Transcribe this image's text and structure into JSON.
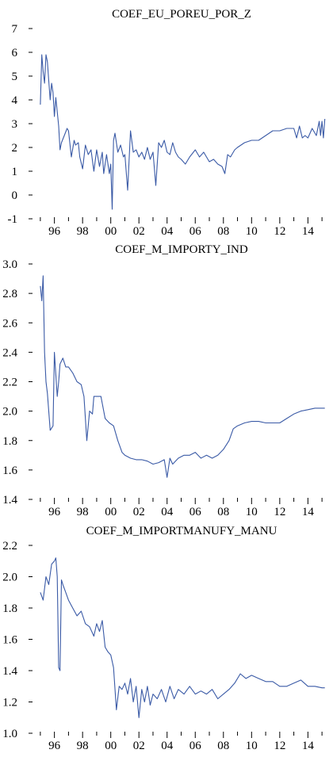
{
  "chart_data": [
    {
      "type": "line",
      "title": "COEF_EU_POREU_POR_Z",
      "ylim": [
        -1,
        7
      ],
      "y_ticks": [
        "7",
        "6",
        "5",
        "4",
        "3",
        "2",
        "1",
        "0",
        "-1"
      ],
      "x_range": [
        1994.5,
        2015.5
      ],
      "x_tick_labels": [
        "96",
        "98",
        "00",
        "02",
        "04",
        "06",
        "08",
        "10",
        "12",
        "14"
      ],
      "grid": false,
      "legend": "none",
      "line_color": "#3a5aa6",
      "x": [
        1995.0,
        1995.1,
        1995.2,
        1995.3,
        1995.4,
        1995.5,
        1995.6,
        1995.7,
        1995.8,
        1995.9,
        1996.0,
        1996.1,
        1996.2,
        1996.3,
        1996.4,
        1996.5,
        1996.7,
        1996.9,
        1997.0,
        1997.2,
        1997.4,
        1997.5,
        1997.7,
        1997.8,
        1998.0,
        1998.2,
        1998.4,
        1998.6,
        1998.8,
        1999.0,
        1999.2,
        1999.4,
        1999.5,
        1999.7,
        1999.9,
        2000.0,
        2000.1,
        2000.2,
        2000.3,
        2000.5,
        2000.7,
        2000.9,
        2001.0,
        2001.2,
        2001.4,
        2001.6,
        2001.8,
        2002.0,
        2002.2,
        2002.4,
        2002.6,
        2002.8,
        2003.0,
        2003.2,
        2003.4,
        2003.6,
        2003.8,
        2004.0,
        2004.2,
        2004.4,
        2004.6,
        2004.8,
        2005.0,
        2005.3,
        2005.6,
        2006.0,
        2006.3,
        2006.6,
        2007.0,
        2007.3,
        2007.6,
        2007.9,
        2008.1,
        2008.3,
        2008.5,
        2008.8,
        2009.0,
        2009.5,
        2010.0,
        2010.5,
        2011.0,
        2011.5,
        2012.0,
        2012.5,
        2013.0,
        2013.2,
        2013.4,
        2013.6,
        2013.8,
        2014.0,
        2014.3,
        2014.6,
        2014.8,
        2014.9,
        2015.0,
        2015.1,
        2015.2
      ],
      "values": [
        3.8,
        5.9,
        5.2,
        4.7,
        5.9,
        5.6,
        4.8,
        4.0,
        4.7,
        4.3,
        3.3,
        4.1,
        3.5,
        2.9,
        1.9,
        2.2,
        2.5,
        2.8,
        2.7,
        1.6,
        2.3,
        2.1,
        2.2,
        1.6,
        1.1,
        2.1,
        1.7,
        1.9,
        1.0,
        1.9,
        1.2,
        1.8,
        0.9,
        1.7,
        0.9,
        1.3,
        -0.6,
        2.3,
        2.6,
        1.8,
        2.1,
        1.6,
        1.7,
        0.2,
        2.7,
        1.8,
        1.9,
        1.6,
        1.8,
        1.5,
        2.0,
        1.5,
        1.8,
        0.4,
        2.2,
        2.0,
        2.3,
        1.8,
        1.7,
        2.2,
        1.8,
        1.6,
        1.5,
        1.3,
        1.6,
        1.9,
        1.6,
        1.8,
        1.4,
        1.5,
        1.3,
        1.2,
        0.9,
        1.7,
        1.6,
        1.9,
        2.0,
        2.2,
        2.3,
        2.3,
        2.5,
        2.7,
        2.7,
        2.8,
        2.8,
        2.4,
        2.9,
        2.4,
        2.5,
        2.4,
        2.8,
        2.5,
        3.1,
        2.5,
        3.1,
        2.4,
        3.2
      ]
    },
    {
      "type": "line",
      "title": "COEF_M_IMPORTY_IND",
      "ylim": [
        1.4,
        3.0
      ],
      "y_ticks": [
        "3.0",
        "2.8",
        "2.6",
        "2.4",
        "2.2",
        "2.0",
        "1.8",
        "1.6",
        "1.4"
      ],
      "x_range": [
        1994.5,
        2015.5
      ],
      "x_tick_labels": [
        "96",
        "98",
        "00",
        "02",
        "04",
        "06",
        "08",
        "10",
        "12",
        "14"
      ],
      "grid": false,
      "legend": "none",
      "line_color": "#3a5aa6",
      "x": [
        1995.0,
        1995.1,
        1995.2,
        1995.3,
        1995.4,
        1995.5,
        1995.7,
        1995.9,
        1996.0,
        1996.2,
        1996.3,
        1996.4,
        1996.6,
        1996.8,
        1997.0,
        1997.3,
        1997.6,
        1997.9,
        1998.1,
        1998.3,
        1998.5,
        1998.7,
        1998.8,
        1999.0,
        1999.3,
        1999.6,
        1999.9,
        2000.2,
        2000.5,
        2000.8,
        2001.0,
        2001.4,
        2001.8,
        2002.2,
        2002.6,
        2003.0,
        2003.4,
        2003.8,
        2004.0,
        2004.2,
        2004.4,
        2004.8,
        2005.2,
        2005.6,
        2006.0,
        2006.4,
        2006.8,
        2007.2,
        2007.6,
        2008.0,
        2008.4,
        2008.7,
        2009.0,
        2009.5,
        2010.0,
        2010.5,
        2011.0,
        2011.5,
        2012.0,
        2012.5,
        2013.0,
        2013.5,
        2014.0,
        2014.5,
        2015.0,
        2015.2
      ],
      "values": [
        2.85,
        2.75,
        2.92,
        2.4,
        2.2,
        2.12,
        1.87,
        1.9,
        2.4,
        2.1,
        2.2,
        2.32,
        2.36,
        2.3,
        2.3,
        2.26,
        2.2,
        2.18,
        2.1,
        1.8,
        2.0,
        1.98,
        2.1,
        2.1,
        2.1,
        1.95,
        1.92,
        1.9,
        1.8,
        1.72,
        1.7,
        1.68,
        1.67,
        1.67,
        1.66,
        1.64,
        1.65,
        1.67,
        1.55,
        1.68,
        1.64,
        1.68,
        1.7,
        1.7,
        1.72,
        1.68,
        1.7,
        1.68,
        1.7,
        1.74,
        1.8,
        1.88,
        1.9,
        1.92,
        1.93,
        1.93,
        1.92,
        1.92,
        1.92,
        1.95,
        1.98,
        2.0,
        2.01,
        2.02,
        2.02,
        2.02
      ]
    },
    {
      "type": "line",
      "title": "COEF_M_IMPORTMANUFY_MANU",
      "ylim": [
        1.0,
        2.2
      ],
      "y_ticks": [
        "2.2",
        "2.0",
        "1.8",
        "1.6",
        "1.4",
        "1.2",
        "1.0"
      ],
      "x_range": [
        1994.5,
        2015.5
      ],
      "x_tick_labels": [
        "96",
        "98",
        "00",
        "02",
        "04",
        "06",
        "08",
        "10",
        "12",
        "14"
      ],
      "grid": false,
      "legend": "none",
      "line_color": "#3a5aa6",
      "x": [
        1995.0,
        1995.2,
        1995.4,
        1995.6,
        1995.8,
        1996.0,
        1996.1,
        1996.2,
        1996.3,
        1996.4,
        1996.5,
        1996.6,
        1996.8,
        1997.0,
        1997.3,
        1997.6,
        1997.9,
        1998.2,
        1998.5,
        1998.8,
        1999.0,
        1999.2,
        1999.4,
        1999.6,
        1999.8,
        2000.0,
        2000.2,
        2000.4,
        2000.6,
        2000.8,
        2001.0,
        2001.2,
        2001.4,
        2001.6,
        2001.8,
        2002.0,
        2002.2,
        2002.4,
        2002.6,
        2002.8,
        2003.0,
        2003.3,
        2003.6,
        2003.9,
        2004.2,
        2004.5,
        2004.8,
        2005.2,
        2005.6,
        2006.0,
        2006.4,
        2006.8,
        2007.2,
        2007.6,
        2008.0,
        2008.4,
        2008.8,
        2009.2,
        2009.6,
        2010.0,
        2010.5,
        2011.0,
        2011.5,
        2012.0,
        2012.5,
        2013.0,
        2013.5,
        2014.0,
        2014.5,
        2015.0,
        2015.2
      ],
      "values": [
        1.9,
        1.85,
        2.0,
        1.95,
        2.08,
        2.1,
        2.12,
        2.0,
        1.42,
        1.4,
        1.98,
        1.95,
        1.9,
        1.85,
        1.8,
        1.75,
        1.78,
        1.7,
        1.68,
        1.62,
        1.7,
        1.65,
        1.72,
        1.55,
        1.52,
        1.5,
        1.42,
        1.15,
        1.3,
        1.28,
        1.32,
        1.25,
        1.35,
        1.2,
        1.3,
        1.1,
        1.28,
        1.2,
        1.3,
        1.18,
        1.25,
        1.22,
        1.28,
        1.2,
        1.3,
        1.22,
        1.28,
        1.25,
        1.3,
        1.25,
        1.27,
        1.25,
        1.28,
        1.22,
        1.25,
        1.28,
        1.32,
        1.38,
        1.35,
        1.37,
        1.35,
        1.33,
        1.33,
        1.3,
        1.3,
        1.32,
        1.34,
        1.3,
        1.3,
        1.29,
        1.29
      ]
    }
  ]
}
